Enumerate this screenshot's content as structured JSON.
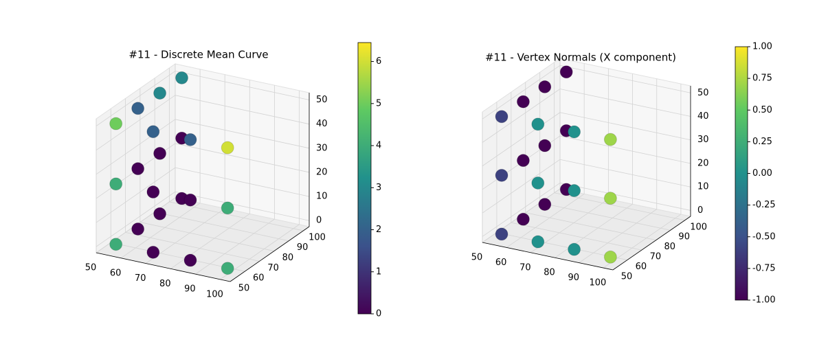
{
  "chart_data": [
    {
      "type": "scatter3d",
      "title": "#11 - Discrete Mean Curve",
      "colormap": "viridis",
      "x": [
        55,
        55,
        55,
        55,
        55,
        55,
        55,
        55,
        55,
        55,
        55,
        55,
        70,
        70,
        70,
        85,
        85,
        85,
        100,
        100,
        100
      ],
      "y": [
        100,
        100,
        100,
        85,
        85,
        85,
        70,
        70,
        70,
        55,
        55,
        55,
        55,
        55,
        55,
        55,
        55,
        55,
        55,
        55,
        55
      ],
      "z": [
        0,
        25,
        50,
        0,
        25,
        50,
        0,
        25,
        50,
        0,
        25,
        50,
        0,
        25,
        50,
        0,
        25,
        50,
        0,
        25,
        50
      ],
      "c": [
        0,
        0,
        3,
        0,
        0,
        3,
        0,
        0,
        2,
        4,
        4,
        5,
        0,
        0,
        2,
        0,
        0,
        2,
        4,
        4,
        6
      ],
      "xlim": [
        50,
        104
      ],
      "ylim": [
        50,
        104
      ],
      "zlim": [
        -2.5,
        53
      ],
      "xticks": [
        50,
        60,
        70,
        80,
        90,
        100
      ],
      "yticks": [
        50,
        60,
        70,
        80,
        90,
        100
      ],
      "zticks": [
        0,
        10,
        20,
        30,
        40,
        50
      ],
      "clim": [
        0,
        6.45
      ],
      "cticks": [
        0,
        1,
        2,
        3,
        4,
        5,
        6
      ]
    },
    {
      "type": "scatter3d",
      "title": "#11 - Vertex Normals (X component)",
      "colormap": "viridis",
      "x": [
        55,
        55,
        55,
        55,
        55,
        55,
        55,
        55,
        55,
        55,
        55,
        55,
        70,
        70,
        70,
        85,
        85,
        85,
        100,
        100,
        100
      ],
      "y": [
        100,
        100,
        100,
        85,
        85,
        85,
        70,
        70,
        70,
        55,
        55,
        55,
        55,
        55,
        55,
        55,
        55,
        55,
        55,
        55,
        55
      ],
      "z": [
        0,
        25,
        50,
        0,
        25,
        50,
        0,
        25,
        50,
        0,
        25,
        50,
        0,
        25,
        50,
        0,
        25,
        50,
        0,
        25,
        50
      ],
      "c": [
        -1,
        -1,
        -1,
        -1,
        -1,
        -1,
        -1,
        -1,
        -1,
        -0.6,
        -0.6,
        -0.6,
        0,
        0,
        0,
        0,
        0,
        0,
        0.7,
        0.7,
        0.7
      ],
      "xlim": [
        50,
        104
      ],
      "ylim": [
        50,
        104
      ],
      "zlim": [
        -2.5,
        53
      ],
      "xticks": [
        50,
        60,
        70,
        80,
        90,
        100
      ],
      "yticks": [
        50,
        60,
        70,
        80,
        90,
        100
      ],
      "zticks": [
        0,
        10,
        20,
        30,
        40,
        50
      ],
      "clim": [
        -1,
        1
      ],
      "cticks": [
        {
          "value": -1,
          "label": "-1.00"
        },
        {
          "value": -0.75,
          "label": "-0.75"
        },
        {
          "value": -0.5,
          "label": "-0.50"
        },
        {
          "value": -0.25,
          "label": "-0.25"
        },
        {
          "value": 0,
          "label": "0.00"
        },
        {
          "value": 0.25,
          "label": "0.25"
        },
        {
          "value": 0.5,
          "label": "0.50"
        },
        {
          "value": 0.75,
          "label": "0.75"
        },
        {
          "value": 1,
          "label": "1.00"
        }
      ]
    }
  ]
}
